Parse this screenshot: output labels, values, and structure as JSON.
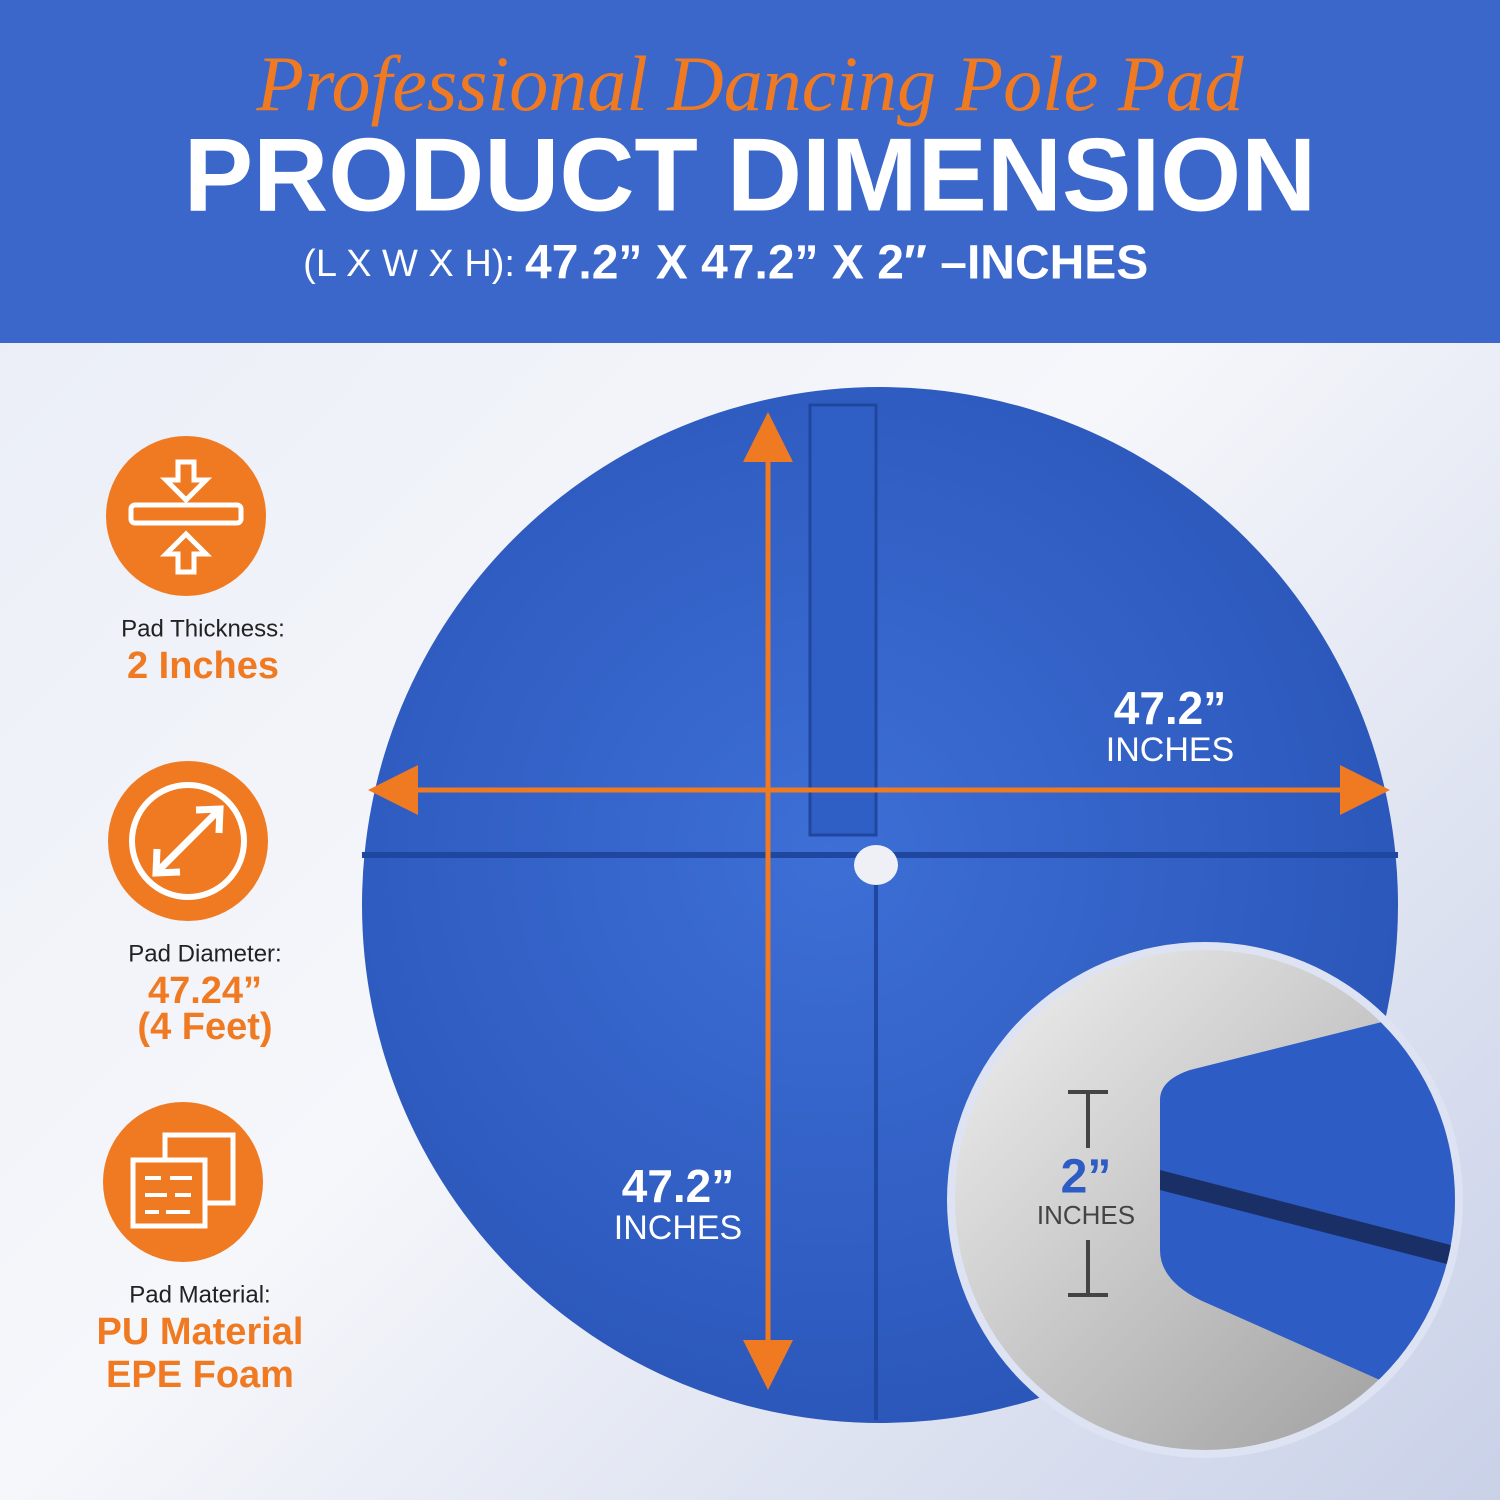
{
  "header": {
    "script_title": "Professional Dancing Pole Pad",
    "title": "PRODUCT DIMENSION",
    "dims_label": "(L X W X H):",
    "dims_value": "47.2” X 47.2” X 2″ –INCHES"
  },
  "specs": [
    {
      "label": "Pad Thickness:",
      "value": [
        "2 Inches"
      ]
    },
    {
      "label": "Pad Diameter:",
      "value": [
        "47.24”",
        "(4 Feet)"
      ]
    },
    {
      "label": "Pad Material:",
      "value": [
        "PU Material",
        "EPE Foam"
      ]
    }
  ],
  "annotations": {
    "width": {
      "value": "47.2”",
      "unit": "INCHES"
    },
    "length": {
      "value": "47.2”",
      "unit": "INCHES"
    },
    "thickness": {
      "value": "2”",
      "unit": "INCHES"
    }
  }
}
